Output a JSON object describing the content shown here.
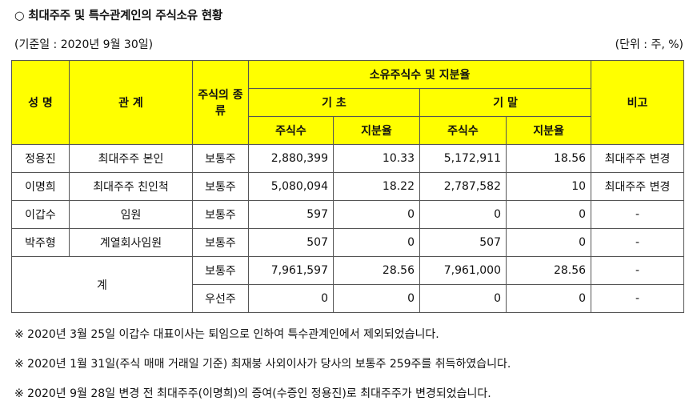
{
  "title": "○ 최대주주 및 특수관계인의 주식소유 현황",
  "base_date": "(기준일 : 2020년 9월 30일)",
  "unit": "(단위 : 주, %)",
  "headers": {
    "name": "성 명",
    "relation": "관 계",
    "stock_type": "주식의 종류",
    "ownership": "소유주식수 및 지분율",
    "beginning": "기 초",
    "ending": "기 말",
    "shares": "주식수",
    "ratio": "지분율",
    "remarks": "비고"
  },
  "rows": [
    {
      "name": "정용진",
      "relation": "최대주주 본인",
      "type": "보통주",
      "begin_shares": "2,880,399",
      "begin_ratio": "10.33",
      "end_shares": "5,172,911",
      "end_ratio": "18.56",
      "remarks": "최대주주 변경"
    },
    {
      "name": "이명희",
      "relation": "최대주주 친인척",
      "type": "보통주",
      "begin_shares": "5,080,094",
      "begin_ratio": "18.22",
      "end_shares": "2,787,582",
      "end_ratio": "10",
      "remarks": "최대주주 변경"
    },
    {
      "name": "이갑수",
      "relation": "임원",
      "type": "보통주",
      "begin_shares": "597",
      "begin_ratio": "0",
      "end_shares": "0",
      "end_ratio": "0",
      "remarks": "-"
    },
    {
      "name": "박주형",
      "relation": "계열회사임원",
      "type": "보통주",
      "begin_shares": "507",
      "begin_ratio": "0",
      "end_shares": "507",
      "end_ratio": "0",
      "remarks": "-"
    }
  ],
  "total": {
    "label": "계",
    "rows": [
      {
        "type": "보통주",
        "begin_shares": "7,961,597",
        "begin_ratio": "28.56",
        "end_shares": "7,961,000",
        "end_ratio": "28.56",
        "remarks": "-"
      },
      {
        "type": "우선주",
        "begin_shares": "0",
        "begin_ratio": "0",
        "end_shares": "0",
        "end_ratio": "0",
        "remarks": "-"
      }
    ]
  },
  "notes": [
    "※ 2020년 3월 25일 이갑수 대표이사는 퇴임으로 인하여 특수관계인에서 제외되었습니다.",
    "※ 2020년 1월 31일(주식 매매 거래일 기준) 최재붕 사외이사가 당사의 보통주 259주를 취득하였습니다.",
    "※ 2020년 9월 28일 변경 전 최대주주(이명희)의 증여(수증인 정용진)로 최대주주가 변경되었습니다."
  ]
}
